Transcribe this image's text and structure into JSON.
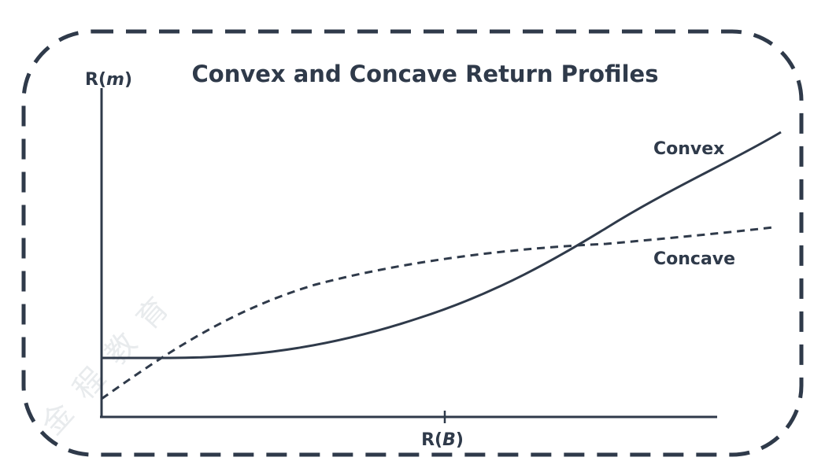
{
  "title": "Convex and Concave Return Profiles",
  "y_axis_label": {
    "prefix": "R(",
    "var": "m",
    "suffix": ")"
  },
  "x_axis_label": {
    "prefix": "R(",
    "var": "B",
    "suffix": ")"
  },
  "curves": {
    "convex": {
      "label": "Convex",
      "style": "solid"
    },
    "concave": {
      "label": "Concave",
      "style": "dashed"
    }
  },
  "watermark": "金程教育",
  "colors": {
    "ink": "#2f3a4a",
    "frame": "#2f3a4a"
  }
}
